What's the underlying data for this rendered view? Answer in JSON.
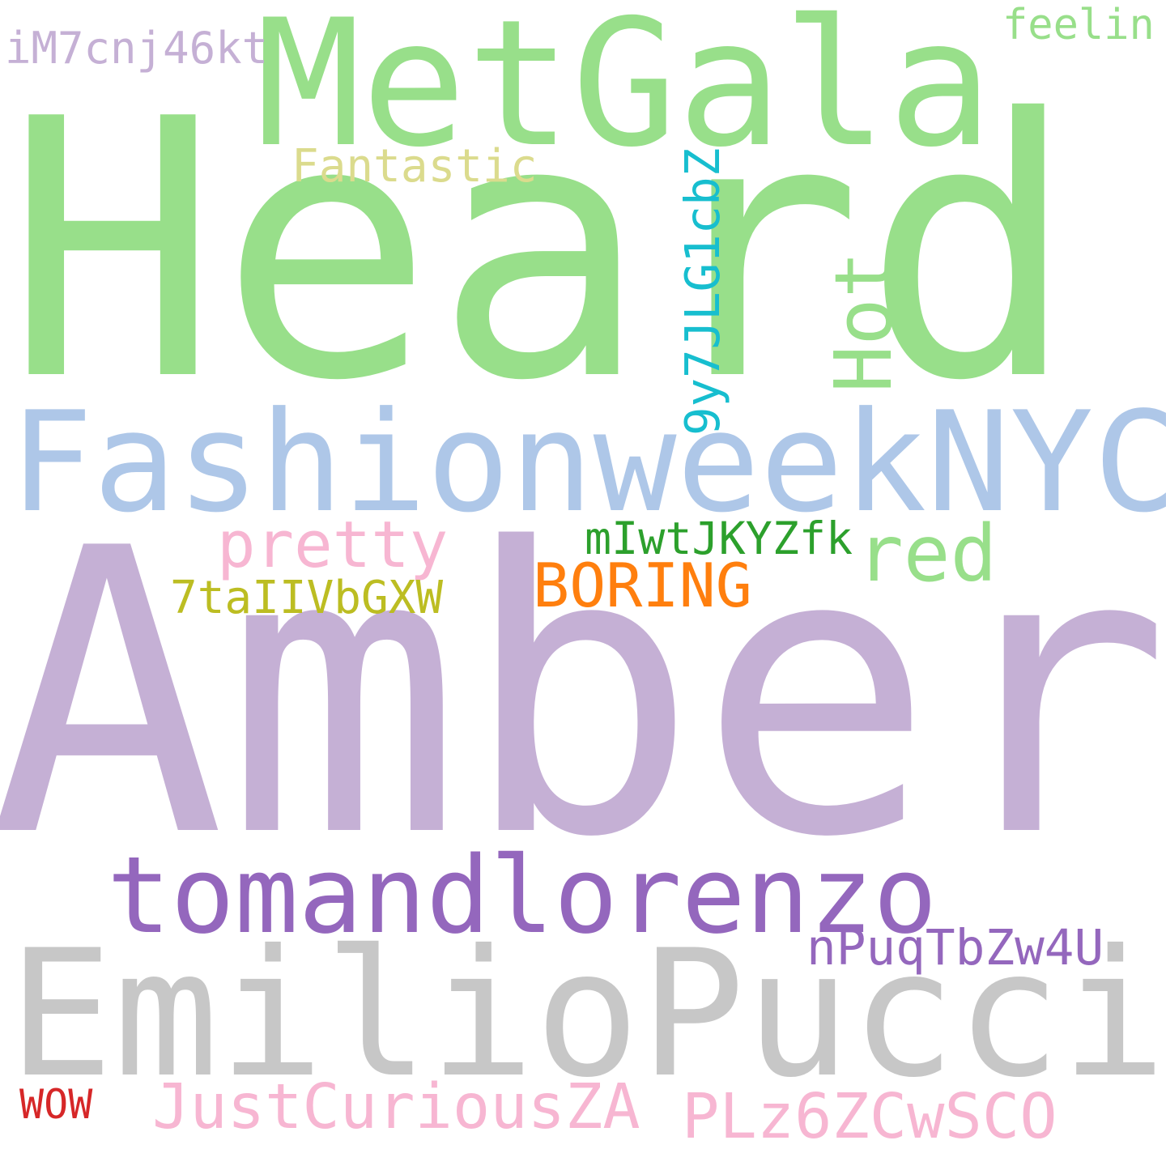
{
  "words": [
    {
      "text": "Heard",
      "color": "#98df8a"
    },
    {
      "text": "Amber",
      "color": "#c5b0d5"
    },
    {
      "text": "EmilioPucci",
      "color": "#c7c7c7"
    },
    {
      "text": "FashionweekNYC",
      "color": "#aec7e8"
    },
    {
      "text": "MetGala",
      "color": "#98df8a"
    },
    {
      "text": "tomandlorenzo",
      "color": "#9467bd"
    },
    {
      "text": "Hot",
      "color": "#98df8a"
    },
    {
      "text": "red",
      "color": "#98df8a"
    },
    {
      "text": "9y7JLG1cbZ",
      "color": "#17becf"
    },
    {
      "text": "pretty",
      "color": "#f7b6d2"
    },
    {
      "text": "BORING",
      "color": "#ff7f0e"
    },
    {
      "text": "JustCuriousZA",
      "color": "#f7b6d2"
    },
    {
      "text": "PLz6ZCwSCO",
      "color": "#f7b6d2"
    },
    {
      "text": "nPuqTbZw4U",
      "color": "#9467bd"
    },
    {
      "text": "Fantastic",
      "color": "#dbdb8d"
    },
    {
      "text": "mIwtJKYZfk",
      "color": "#2ca02c"
    },
    {
      "text": "7taIIVbGXW",
      "color": "#bcbd22"
    },
    {
      "text": "iM7cnj46kt",
      "color": "#c5b0d5"
    },
    {
      "text": "feelin",
      "color": "#98df8a"
    },
    {
      "text": "WOW",
      "color": "#d62728"
    }
  ]
}
